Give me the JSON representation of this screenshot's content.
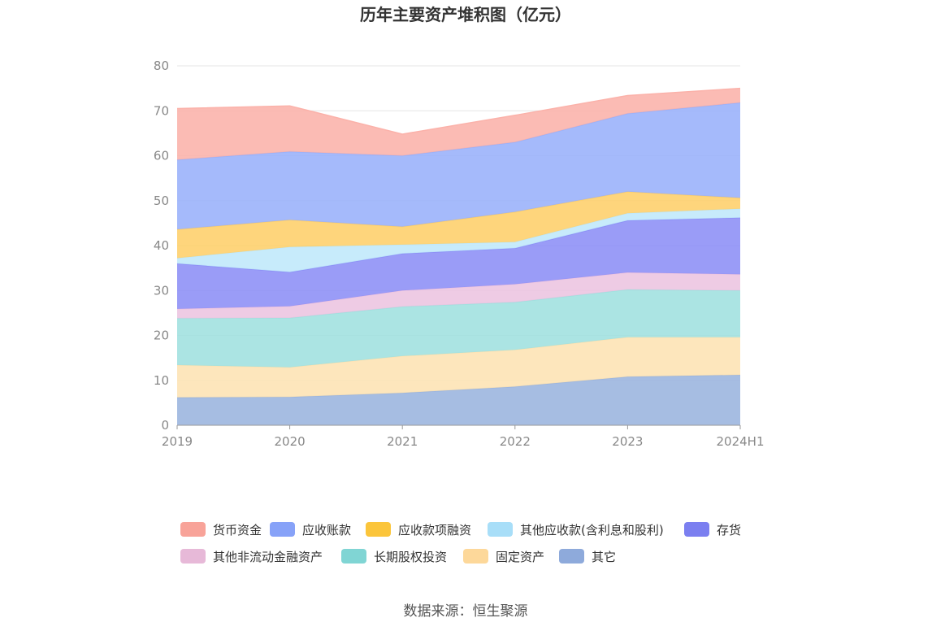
{
  "chart_data": {
    "type": "area",
    "stacked": true,
    "title": "历年主要资产堆积图（亿元）",
    "categories": [
      "2019",
      "2020",
      "2021",
      "2022",
      "2023",
      "2024H1"
    ],
    "ylim": [
      0,
      80
    ],
    "yticks": [
      "0",
      "10",
      "20",
      "30",
      "40",
      "50",
      "60",
      "70",
      "80"
    ],
    "grid": true,
    "legend_position": "bottom",
    "series": [
      {
        "name": "其它",
        "color": "#9ab4de",
        "legend_color": "#8eaadb",
        "values": [
          6.2,
          6.3,
          7.2,
          8.6,
          10.8,
          11.2
        ]
      },
      {
        "name": "固定资产",
        "color": "#fde2b3",
        "legend_color": "#fdd89a",
        "values": [
          7.2,
          6.6,
          8.2,
          8.2,
          8.8,
          8.4
        ]
      },
      {
        "name": "长期股权投资",
        "color": "#9fe0df",
        "legend_color": "#80d5d4",
        "values": [
          10.4,
          11.0,
          11.0,
          10.6,
          10.6,
          10.4
        ]
      },
      {
        "name": "其他非流动金融资产",
        "color": "#ecc4e0",
        "legend_color": "#e7b9d8",
        "values": [
          2.1,
          2.6,
          3.6,
          4.0,
          3.8,
          3.6
        ]
      },
      {
        "name": "存货",
        "color": "#8c8ef6",
        "legend_color": "#7b7ff0",
        "values": [
          10.1,
          7.6,
          8.2,
          8.0,
          11.6,
          12.6
        ]
      },
      {
        "name": "其他应收款(含利息和股利)",
        "color": "#bfe8fb",
        "legend_color": "#a8def8",
        "values": [
          1.2,
          5.6,
          2.0,
          1.4,
          1.6,
          2.0
        ]
      },
      {
        "name": "应收款项融资",
        "color": "#fecf6a",
        "legend_color": "#fbc53b",
        "values": [
          6.4,
          6.0,
          4.0,
          6.7,
          4.8,
          2.4
        ]
      },
      {
        "name": "应收账款",
        "color": "#99b1fb",
        "legend_color": "#87a2f8",
        "values": [
          15.5,
          15.2,
          15.8,
          15.5,
          17.4,
          21.2
        ]
      },
      {
        "name": "货币资金",
        "color": "#fbb2aa",
        "legend_color": "#f8a399",
        "values": [
          11.4,
          10.2,
          4.8,
          6.0,
          4.0,
          3.2
        ]
      }
    ],
    "legend_order": [
      "货币资金",
      "应收账款",
      "应收款项融资",
      "其他应收款(含利息和股利)",
      "存货",
      "其他非流动金融资产",
      "长期股权投资",
      "固定资产",
      "其它"
    ]
  },
  "source_text": "数据来源：恒生聚源",
  "colors": {
    "axis": "#999999",
    "grid": "#e6e6e6",
    "tick_text": "#888888"
  }
}
